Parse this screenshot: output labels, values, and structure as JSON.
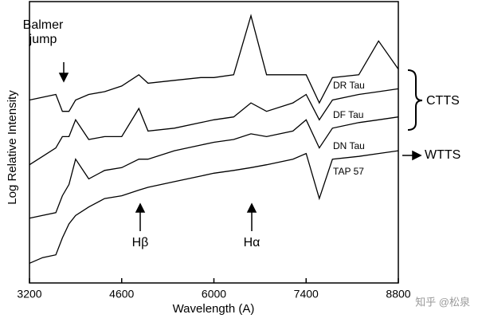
{
  "chart_data": {
    "type": "line",
    "xlabel": "Wavelength (A)",
    "ylabel": "Log Relative Intensity",
    "x": [
      3200,
      3400,
      3600,
      3700,
      3800,
      3900,
      4100,
      4340,
      4600,
      4861,
      5000,
      5400,
      5800,
      6000,
      6300,
      6563,
      6800,
      7200,
      7400,
      7600,
      7800,
      8200,
      8500,
      8800
    ],
    "xlim": [
      3200,
      8800
    ],
    "xticks": [
      3200,
      4600,
      6000,
      7400,
      8800
    ],
    "ylim": [
      0,
      10
    ],
    "series": [
      {
        "name": "DR Tau",
        "color": "#000000",
        "values": [
          6.5,
          6.6,
          6.7,
          6.1,
          6.1,
          6.5,
          6.7,
          6.8,
          7.0,
          7.4,
          7.1,
          7.2,
          7.3,
          7.3,
          7.4,
          9.5,
          7.4,
          7.4,
          7.4,
          6.4,
          7.3,
          7.4,
          8.6,
          7.6
        ]
      },
      {
        "name": "DF Tau",
        "color": "#000000",
        "values": [
          4.2,
          4.5,
          4.8,
          5.2,
          5.2,
          5.8,
          5.1,
          5.2,
          5.2,
          6.2,
          5.4,
          5.5,
          5.7,
          5.8,
          5.9,
          6.4,
          6.1,
          6.4,
          6.7,
          5.8,
          6.5,
          6.7,
          6.8,
          6.9
        ]
      },
      {
        "name": "DN Tau",
        "color": "#000000",
        "values": [
          2.3,
          2.4,
          2.5,
          3.1,
          3.5,
          4.4,
          3.7,
          4.0,
          4.1,
          4.4,
          4.4,
          4.7,
          4.9,
          5.0,
          5.1,
          5.3,
          5.2,
          5.4,
          5.8,
          4.8,
          5.5,
          5.7,
          5.8,
          5.9
        ]
      },
      {
        "name": "TAP 57",
        "color": "#000000",
        "values": [
          0.7,
          0.9,
          1.0,
          1.6,
          2.1,
          2.4,
          2.7,
          3.0,
          3.1,
          3.3,
          3.4,
          3.6,
          3.8,
          3.9,
          4.0,
          4.1,
          4.2,
          4.4,
          4.6,
          3.0,
          4.4,
          4.5,
          4.6,
          4.7
        ]
      }
    ],
    "annotations": [
      "Balmer",
      "jump",
      "Hβ",
      "Hα",
      "CTTS",
      "WTTS"
    ],
    "watermark": "知乎 @松泉"
  }
}
